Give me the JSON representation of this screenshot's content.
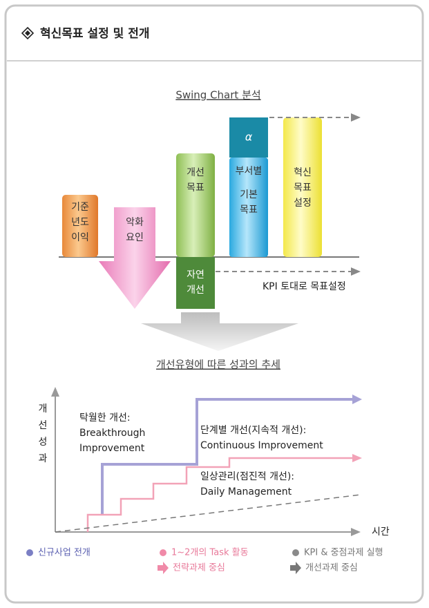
{
  "header": {
    "title": "혁신목표 설정 및 전개"
  },
  "swing_chart": {
    "title": "Swing Chart 분석",
    "base_profit": [
      "기준",
      "년도",
      "이익"
    ],
    "worsening": [
      "악화",
      "요인"
    ],
    "improve_target": [
      "개선",
      "목표"
    ],
    "natural_improve": [
      "자연",
      "개선"
    ],
    "alpha": "α",
    "dept": "부서별",
    "basic_target": [
      "기본",
      "목표"
    ],
    "innovation_target": [
      "혁신",
      "목표",
      "설정"
    ],
    "kpi_note": "KPI 토대로 목표설정"
  },
  "trend_chart": {
    "title": "개선유형에 따른 성과의 추세",
    "y_label": [
      "개",
      "선",
      "성",
      "과"
    ],
    "x_label": "시간",
    "breakthrough": [
      "탁월한 개선:",
      "Breakthrough",
      "Improvement"
    ],
    "continuous": [
      "단계별 개선(지속적 개선):",
      "Continuous Improvement"
    ],
    "daily": [
      "일상관리(점진적 개선):",
      "Daily Management"
    ]
  },
  "legend": {
    "new_business": "신규사업 전개",
    "task": "1~2개의 Task 활동",
    "strategy": "전략과제 중심",
    "kpi": "KPI & 중점과제 실행",
    "improvement": "개선과제 중심"
  }
}
